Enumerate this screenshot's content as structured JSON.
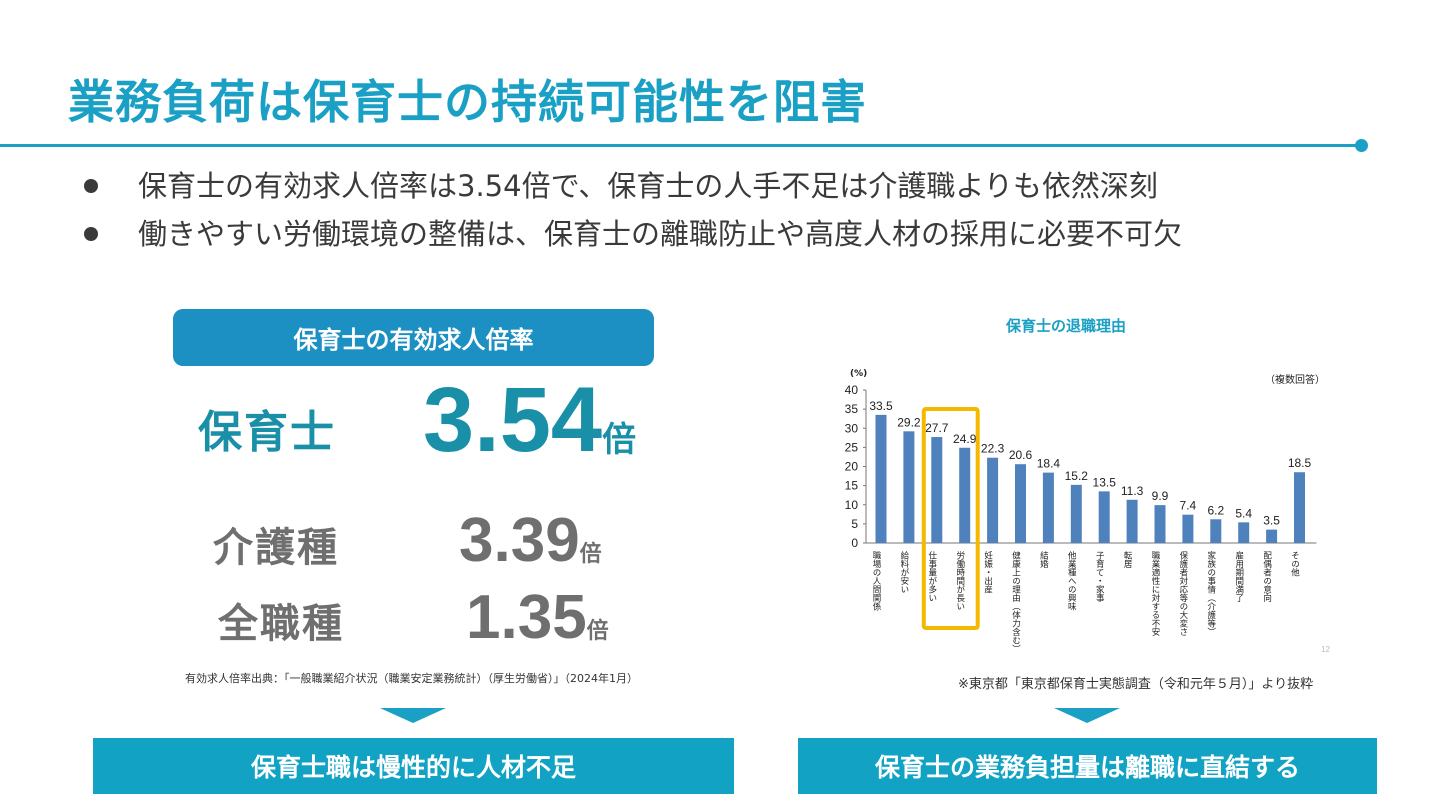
{
  "title": "業務負荷は保育士の持続可能性を阻害",
  "bullets": [
    "保育士の有効求人倍率は3.54倍で、保育士の人手不足は介護職よりも依然深刻",
    "働きやすい労働環境の整備は、保育士の離職防止や高度人材の採用に必要不可欠"
  ],
  "left_panel": {
    "header": "保育士の有効求人倍率",
    "rows": [
      {
        "label": "保育士",
        "value": "3.54",
        "unit": "倍"
      },
      {
        "label": "介護種",
        "value": "3.39",
        "unit": "倍"
      },
      {
        "label": "全職種",
        "value": "1.35",
        "unit": "倍"
      }
    ],
    "source": "有効求人倍率出典：「一般職業紹介状況（職業安定業務統計）（厚生労働省）」（2024年1月）"
  },
  "right_panel": {
    "title": "保育士の退職理由",
    "note": "※東京都「東京都保育士実態調査（令和元年５月）」より抜粋"
  },
  "conclusions": {
    "left": "保育士職は慢性的に人材不足",
    "right": "保育士の業務負担量は離職に直結する"
  },
  "colors": {
    "accent": "#1aa0c4",
    "bar": "#4f81bd",
    "highlight": "#f5b800"
  },
  "chart_data": {
    "type": "bar",
    "ylabel": "(%)",
    "annotation": "（複数回答）",
    "ylim": [
      0,
      40
    ],
    "yticks": [
      0,
      5,
      10,
      15,
      20,
      25,
      30,
      35,
      40
    ],
    "grid": false,
    "page_number": "12",
    "categories": [
      "職場の人間関係",
      "給料が安い",
      "仕事量が多い",
      "労働時間が長い",
      "妊娠・出産",
      "健康上の理由（体力含む）",
      "結婚",
      "他業種への興味",
      "子育て・家事",
      "転居",
      "職業適性に対する不安",
      "保護者対応等の大変さ",
      "家族の事情（介護等）",
      "雇用期間満了",
      "配偶者の意向",
      "その他"
    ],
    "values": [
      33.5,
      29.2,
      27.7,
      24.9,
      22.3,
      20.6,
      18.4,
      15.2,
      13.5,
      11.3,
      9.9,
      7.4,
      6.2,
      5.4,
      3.5,
      18.5
    ],
    "highlighted": [
      "仕事量が多い",
      "労働時間が長い"
    ]
  }
}
